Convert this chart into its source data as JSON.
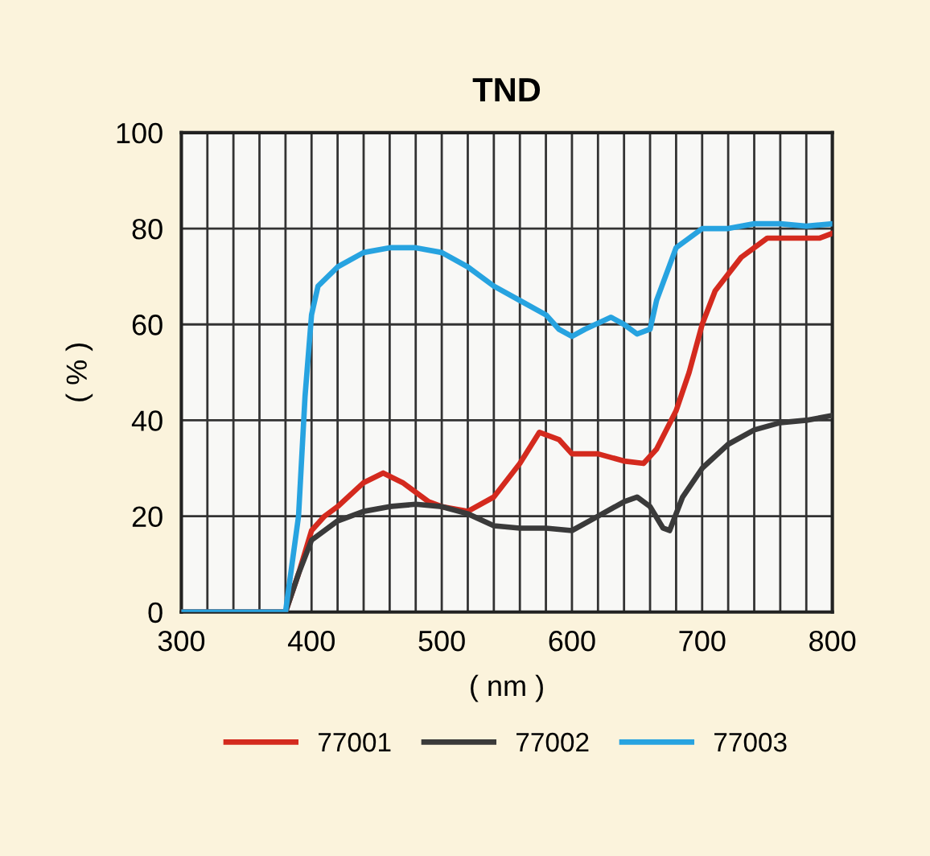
{
  "chart_data": {
    "type": "line",
    "title": "TND",
    "xlabel": "( nm )",
    "ylabel": "( % )",
    "xlim": [
      300,
      800
    ],
    "ylim": [
      0,
      100
    ],
    "xticks": [
      300,
      {
        "value": 320,
        "label": null
      },
      {
        "value": 340,
        "label": null
      },
      {
        "value": 360,
        "label": null
      },
      {
        "value": 380,
        "label": null
      },
      400,
      {
        "value": 420,
        "label": null
      },
      {
        "value": 440,
        "label": null
      },
      {
        "value": 460,
        "label": null
      },
      {
        "value": 480,
        "label": null
      },
      500,
      {
        "value": 520,
        "label": null
      },
      {
        "value": 540,
        "label": null
      },
      {
        "value": 560,
        "label": null
      },
      {
        "value": 580,
        "label": null
      },
      600,
      {
        "value": 620,
        "label": null
      },
      {
        "value": 640,
        "label": null
      },
      {
        "value": 660,
        "label": null
      },
      {
        "value": 680,
        "label": null
      },
      700,
      {
        "value": 720,
        "label": null
      },
      {
        "value": 740,
        "label": null
      },
      {
        "value": 760,
        "label": null
      },
      {
        "value": 780,
        "label": null
      },
      800
    ],
    "yticks": [
      0,
      20,
      40,
      60,
      80,
      100
    ],
    "grid": true,
    "legend": "bottom",
    "marker": "none",
    "line_style": "solid",
    "series": [
      {
        "name": "77001",
        "color": "#d42a1e",
        "x": [
          300,
          380,
          390,
          400,
          410,
          420,
          440,
          455,
          470,
          490,
          500,
          520,
          540,
          560,
          575,
          590,
          600,
          620,
          640,
          655,
          665,
          680,
          690,
          700,
          710,
          730,
          750,
          770,
          790,
          800
        ],
        "values": [
          0,
          0,
          8,
          17,
          20,
          22,
          27,
          29,
          27,
          23,
          22,
          21,
          24,
          31,
          37.5,
          36,
          33,
          33,
          31.5,
          31,
          34,
          42,
          50,
          60,
          67,
          74,
          78,
          78,
          78,
          79
        ]
      },
      {
        "name": "77002",
        "color": "#3a3a3a",
        "x": [
          300,
          380,
          390,
          400,
          420,
          440,
          460,
          480,
          500,
          520,
          540,
          560,
          580,
          600,
          620,
          640,
          650,
          660,
          670,
          675,
          685,
          700,
          720,
          740,
          760,
          780,
          800
        ],
        "values": [
          0,
          0,
          8,
          15,
          19,
          21,
          22,
          22.5,
          22,
          20.5,
          18,
          17.5,
          17.5,
          17,
          20,
          23,
          24,
          22,
          17.5,
          17,
          24,
          30,
          35,
          38,
          39.5,
          40,
          41
        ]
      },
      {
        "name": "77003",
        "color": "#27a3e0",
        "x": [
          300,
          380,
          390,
          395,
          400,
          405,
          420,
          440,
          460,
          480,
          500,
          520,
          540,
          560,
          580,
          590,
          600,
          610,
          630,
          640,
          650,
          660,
          665,
          680,
          700,
          720,
          740,
          760,
          780,
          800
        ],
        "values": [
          0,
          0,
          20,
          45,
          62,
          68,
          72,
          75,
          76,
          76,
          75,
          72,
          68,
          65,
          62,
          59,
          57.5,
          59,
          61.5,
          60,
          58,
          59,
          65,
          76,
          80,
          80,
          81,
          81,
          80.5,
          81
        ]
      }
    ]
  }
}
